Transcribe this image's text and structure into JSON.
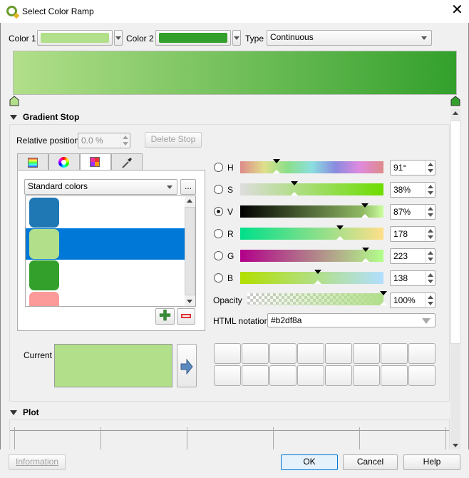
{
  "window": {
    "title": "Select Color Ramp",
    "icon": "qgis-logo-icon"
  },
  "top": {
    "color1_label": "Color 1",
    "color1": "#b2df8a",
    "color2_label": "Color 2",
    "color2": "#33a02c",
    "type_label": "Type",
    "type_value": "Continuous"
  },
  "gradient_stop": {
    "header": "Gradient Stop",
    "relpos_label": "Relative position",
    "relpos_value": "0.0 %",
    "delete_stop": "Delete Stop"
  },
  "tabs": [
    {
      "icon": "color-ramp-icon"
    },
    {
      "icon": "color-wheel-icon"
    },
    {
      "icon": "palette-grid-icon",
      "selected": true
    },
    {
      "icon": "eyedropper-icon"
    }
  ],
  "palette": {
    "selected": "Standard colors",
    "more": "...",
    "swatches": [
      "#1f78b4",
      "#b2df8a",
      "#33a02c",
      "#fb9a99"
    ],
    "selected_index": 1,
    "selection_color": "#0078d7"
  },
  "channels": [
    {
      "label": "H",
      "value": "91°",
      "fraction": 0.253,
      "checked": false,
      "gradient": "linear-gradient(90deg,#df8a8a,#dfdf8a,#8adf8a,#8adfdf,#8a8adf,#df8adf,#df8a8a)"
    },
    {
      "label": "S",
      "value": "38%",
      "fraction": 0.38,
      "checked": false,
      "gradient": "linear-gradient(90deg,#dddddd,#6cdd00)"
    },
    {
      "label": "V",
      "value": "87%",
      "fraction": 0.87,
      "checked": true,
      "gradient": "linear-gradient(90deg,#000,#8fb862 85%,#ccffa0)"
    },
    {
      "label": "R",
      "value": "178",
      "fraction": 0.698,
      "checked": false,
      "gradient": "linear-gradient(90deg,#00df8a,#ffdf8a)"
    },
    {
      "label": "G",
      "value": "223",
      "fraction": 0.875,
      "checked": false,
      "gradient": "linear-gradient(90deg,#b2008a,#b2ff8a)"
    },
    {
      "label": "B",
      "value": "138",
      "fraction": 0.541,
      "checked": false,
      "gradient": "linear-gradient(90deg,#b2df00,#b2dfff)"
    }
  ],
  "opacity": {
    "label": "Opacity",
    "value": "100%",
    "fraction": 1.0
  },
  "html": {
    "label": "HTML notation",
    "value": "#b2df8a"
  },
  "current": {
    "label": "Current",
    "color": "#b2df8a"
  },
  "plot": {
    "header": "Plot"
  },
  "buttons": {
    "information": "Information",
    "ok": "OK",
    "cancel": "Cancel",
    "help": "Help"
  }
}
